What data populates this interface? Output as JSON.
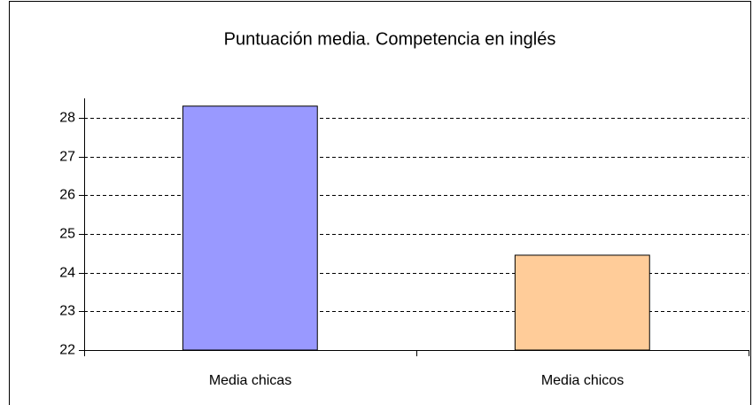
{
  "chart_data": {
    "type": "bar",
    "title": "Puntuación media. Competencia en inglés",
    "categories": [
      "Media chicas",
      "Media chicos"
    ],
    "values": [
      28.3,
      24.45
    ],
    "colors": [
      "#9999ff",
      "#ffcc99"
    ],
    "ylim": [
      22,
      28.5
    ],
    "yticks": [
      22,
      23,
      24,
      25,
      26,
      27,
      28
    ],
    "grid": true
  }
}
